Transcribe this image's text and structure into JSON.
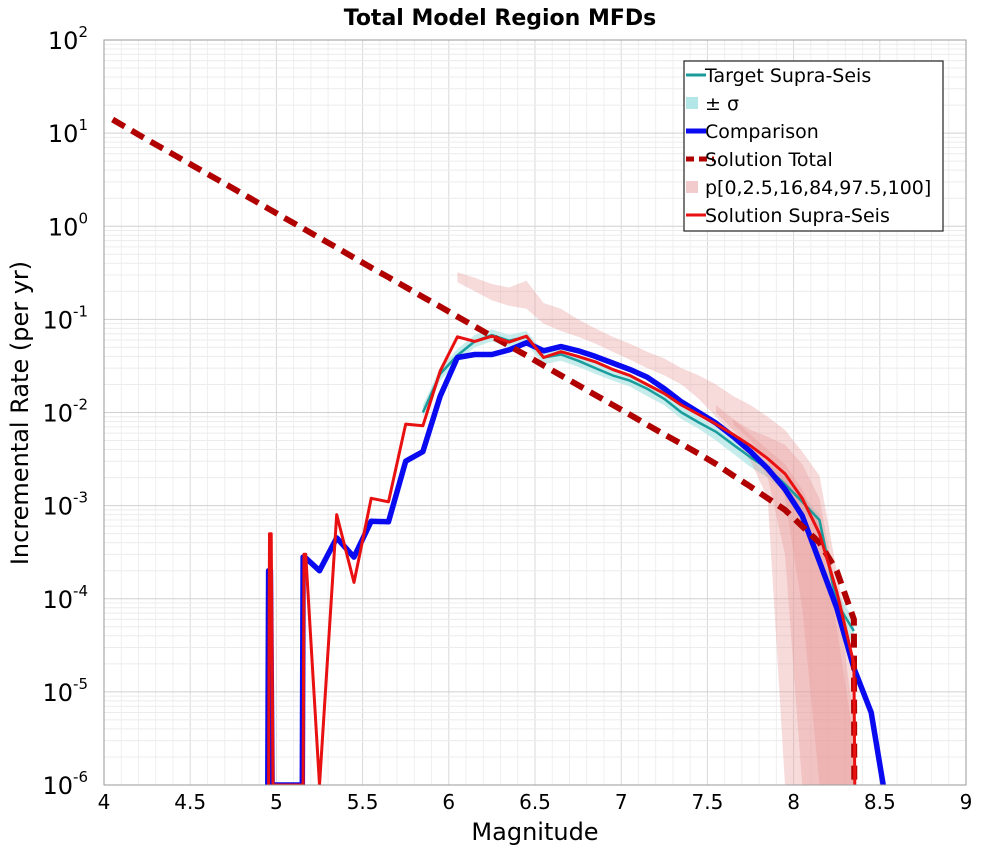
{
  "chart_data": {
    "type": "line",
    "title": "Total Model Region MFDs",
    "xlabel": "Magnitude",
    "ylabel": "Incremental Rate (per yr)",
    "xlim": [
      4,
      9
    ],
    "ylim": [
      1e-06,
      100
    ],
    "yscale": "log",
    "grid": true,
    "legend_position": "top-right",
    "x_ticks": [
      "4",
      "4.5",
      "5",
      "5.5",
      "6",
      "6.5",
      "7",
      "7.5",
      "8",
      "8.5",
      "9"
    ],
    "y_tick_labels": [
      {
        "base": "10",
        "exp": "-6"
      },
      {
        "base": "10",
        "exp": "-5"
      },
      {
        "base": "10",
        "exp": "-4"
      },
      {
        "base": "10",
        "exp": "-3"
      },
      {
        "base": "10",
        "exp": "-2"
      },
      {
        "base": "10",
        "exp": "-1"
      },
      {
        "base": "10",
        "exp": "0"
      },
      {
        "base": "10",
        "exp": "1"
      },
      {
        "base": "10",
        "exp": "2"
      }
    ],
    "bands": [
      {
        "name": "± σ",
        "color": "#b3e6e6",
        "opacity": 0.75,
        "x": [
          5.85,
          5.95,
          6.05,
          6.15,
          6.25,
          6.35,
          6.45,
          6.55,
          6.65,
          6.75,
          6.85,
          6.95,
          7.05,
          7.15,
          7.25,
          7.35,
          7.45,
          7.55,
          7.65,
          7.75,
          7.85,
          7.95,
          8.05,
          8.15,
          8.25,
          8.35
        ],
        "lower": [
          0.009,
          0.022,
          0.035,
          0.05,
          0.058,
          0.05,
          0.055,
          0.033,
          0.036,
          0.031,
          0.026,
          0.022,
          0.019,
          0.015,
          0.012,
          0.0085,
          0.0067,
          0.005,
          0.0036,
          0.0026,
          0.002,
          0.0014,
          0.0009,
          0.00055,
          7e-05,
          3e-05
        ],
        "upper": [
          0.012,
          0.03,
          0.048,
          0.068,
          0.078,
          0.068,
          0.075,
          0.045,
          0.048,
          0.041,
          0.034,
          0.029,
          0.025,
          0.02,
          0.016,
          0.0115,
          0.009,
          0.007,
          0.005,
          0.0037,
          0.0029,
          0.002,
          0.0013,
          0.0008,
          0.00012,
          6e-05
        ]
      },
      {
        "name": "p[0,2.5,16,84,97.5,100]",
        "color": "#e89999",
        "opacity": 0.35,
        "x": [
          6.05,
          6.15,
          6.25,
          6.35,
          6.45,
          6.55,
          6.65,
          6.75,
          6.85,
          6.95,
          7.05,
          7.15,
          7.25,
          7.35,
          7.45,
          7.55,
          7.65,
          7.75,
          7.85,
          7.95,
          8.05,
          8.15,
          8.25,
          8.35
        ],
        "lower": [
          0.25,
          0.2,
          0.16,
          0.14,
          0.13,
          0.09,
          0.075,
          0.065,
          0.055,
          0.045,
          0.037,
          0.03,
          0.025,
          0.02,
          0.014,
          0.009,
          0.0055,
          0.003,
          0.0012,
          1e-06,
          1e-06,
          1e-06,
          1e-06,
          1e-06
        ],
        "upper": [
          0.32,
          0.28,
          0.24,
          0.22,
          0.26,
          0.15,
          0.13,
          0.1,
          0.08,
          0.065,
          0.055,
          0.045,
          0.038,
          0.03,
          0.025,
          0.02,
          0.015,
          0.012,
          0.009,
          0.0065,
          0.0038,
          0.0021,
          0.0002,
          2e-05
        ]
      },
      {
        "name": "p[0,2.5,16,84,97.5,100]",
        "color": "#e89999",
        "opacity": 0.35,
        "x": [
          7.55,
          7.65,
          7.75,
          7.85,
          7.95,
          8.05,
          8.15,
          8.25,
          8.35
        ],
        "lower": [
          0.01,
          0.0065,
          0.0042,
          0.002,
          0.0003,
          1e-06,
          1e-06,
          1e-06,
          1e-06
        ],
        "upper": [
          0.012,
          0.0085,
          0.0065,
          0.0055,
          0.0045,
          0.0028,
          0.0012,
          0.00012,
          5e-06
        ]
      },
      {
        "name": "p[0,2.5,16,84,97.5,100]",
        "color": "#e89999",
        "opacity": 0.35,
        "x": [
          7.65,
          7.75,
          7.85,
          7.95,
          8.05,
          8.15,
          8.25,
          8.35
        ],
        "lower": [
          0.0075,
          0.005,
          0.003,
          0.0012,
          8e-05,
          1e-06,
          1e-06,
          1e-06
        ],
        "upper": [
          0.0085,
          0.0058,
          0.004,
          0.0028,
          0.0015,
          0.0006,
          5e-05,
          3e-06
        ]
      }
    ],
    "series": [
      {
        "name": "Target Supra-Seis",
        "color": "#1a9c9c",
        "width": 2.5,
        "dash": "",
        "x": [
          5.85,
          5.95,
          6.05,
          6.15,
          6.25,
          6.35,
          6.45,
          6.55,
          6.65,
          6.75,
          6.85,
          6.95,
          7.05,
          7.15,
          7.25,
          7.35,
          7.45,
          7.55,
          7.65,
          7.75,
          7.85,
          7.95,
          8.05,
          8.15,
          8.25,
          8.35
        ],
        "y": [
          0.01,
          0.026,
          0.041,
          0.058,
          0.068,
          0.059,
          0.065,
          0.039,
          0.042,
          0.036,
          0.03,
          0.025,
          0.022,
          0.018,
          0.014,
          0.01,
          0.0078,
          0.0062,
          0.0045,
          0.0033,
          0.0025,
          0.0017,
          0.0011,
          0.0007,
          9e-05,
          4.5e-05
        ]
      },
      {
        "name": "Comparison",
        "color": "#0a0af0",
        "width": 5.5,
        "dash": "",
        "x": [
          4.95,
          4.955,
          4.965,
          4.975,
          5.15,
          5.155,
          5.165,
          5.25,
          5.35,
          5.45,
          5.55,
          5.65,
          5.75,
          5.85,
          5.95,
          6.05,
          6.15,
          6.25,
          6.35,
          6.45,
          6.55,
          6.65,
          6.75,
          6.85,
          6.95,
          7.05,
          7.15,
          7.25,
          7.35,
          7.45,
          7.55,
          7.65,
          7.75,
          7.85,
          7.95,
          8.05,
          8.15,
          8.25,
          8.35,
          8.45,
          8.52
        ],
        "y": [
          1e-06,
          0.0002,
          0.0002,
          1e-06,
          1e-06,
          0.00028,
          0.00028,
          0.0002,
          0.00045,
          0.00028,
          0.00068,
          0.00067,
          0.003,
          0.0038,
          0.015,
          0.039,
          0.042,
          0.042,
          0.047,
          0.056,
          0.046,
          0.051,
          0.046,
          0.04,
          0.034,
          0.029,
          0.024,
          0.018,
          0.013,
          0.01,
          0.0077,
          0.0055,
          0.0038,
          0.0025,
          0.0015,
          0.00078,
          0.00025,
          8e-05,
          1.8e-05,
          6e-06,
          1e-06
        ]
      },
      {
        "name": "Solution Total",
        "color": "#b00000",
        "width": 6,
        "dash": "14 8",
        "x": [
          4.05,
          4.15,
          4.25,
          4.35,
          4.45,
          4.55,
          4.65,
          4.75,
          4.85,
          4.95,
          5.05,
          5.15,
          5.25,
          5.35,
          5.45,
          5.55,
          5.65,
          5.75,
          5.85,
          5.95,
          6.05,
          6.15,
          6.25,
          6.35,
          6.45,
          6.55,
          6.65,
          6.75,
          6.85,
          6.95,
          7.05,
          7.15,
          7.25,
          7.35,
          7.45,
          7.55,
          7.65,
          7.75,
          7.85,
          7.95,
          8.05,
          8.15,
          8.25,
          8.35,
          8.352
        ],
        "y": [
          14,
          10.9,
          8.5,
          6.7,
          5.25,
          4.12,
          3.23,
          2.54,
          1.99,
          1.56,
          1.22,
          0.96,
          0.75,
          0.59,
          0.46,
          0.36,
          0.283,
          0.222,
          0.174,
          0.137,
          0.107,
          0.084,
          0.066,
          0.052,
          0.041,
          0.032,
          0.025,
          0.0197,
          0.0154,
          0.0121,
          0.0095,
          0.0074,
          0.0058,
          0.0046,
          0.0036,
          0.0028,
          0.0021,
          0.0016,
          0.0012,
          0.0009,
          0.0006,
          0.0004,
          0.0002,
          6e-05,
          1e-06
        ]
      },
      {
        "name": "Solution Supra-Seis",
        "color": "#e81010",
        "width": 3,
        "dash": "",
        "x": [
          4.955,
          4.96,
          4.97,
          4.98,
          5.155,
          5.16,
          5.17,
          5.25,
          5.35,
          5.45,
          5.55,
          5.65,
          5.75,
          5.85,
          5.95,
          6.05,
          6.15,
          6.25,
          6.35,
          6.45,
          6.55,
          6.65,
          6.75,
          6.85,
          6.95,
          7.05,
          7.15,
          7.25,
          7.35,
          7.45,
          7.55,
          7.65,
          7.75,
          7.85,
          7.95,
          8.05,
          8.15,
          8.25,
          8.35,
          8.355
        ],
        "y": [
          1e-06,
          0.0005,
          0.0005,
          1e-06,
          1e-06,
          0.0003,
          0.0003,
          1e-06,
          0.0008,
          0.00015,
          0.0012,
          0.0011,
          0.0075,
          0.0072,
          0.028,
          0.065,
          0.058,
          0.066,
          0.057,
          0.066,
          0.039,
          0.045,
          0.04,
          0.035,
          0.029,
          0.025,
          0.02,
          0.016,
          0.012,
          0.0095,
          0.0075,
          0.0058,
          0.0044,
          0.0032,
          0.0022,
          0.0012,
          0.0005,
          0.00012,
          2e-05,
          1e-06
        ]
      }
    ],
    "legend": [
      {
        "label": "Target Supra-Seis",
        "kind": "line",
        "color": "#1a9c9c"
      },
      {
        "label": "± σ",
        "kind": "patch",
        "color": "#b3e6e6"
      },
      {
        "label": "Comparison",
        "kind": "line",
        "color": "#0a0af0"
      },
      {
        "label": "Solution Total",
        "kind": "dash",
        "color": "#b00000"
      },
      {
        "label": "p[0,2.5,16,84,97.5,100]",
        "kind": "patch",
        "color": "#f2cccc"
      },
      {
        "label": "Solution Supra-Seis",
        "kind": "line",
        "color": "#e81010"
      }
    ]
  }
}
